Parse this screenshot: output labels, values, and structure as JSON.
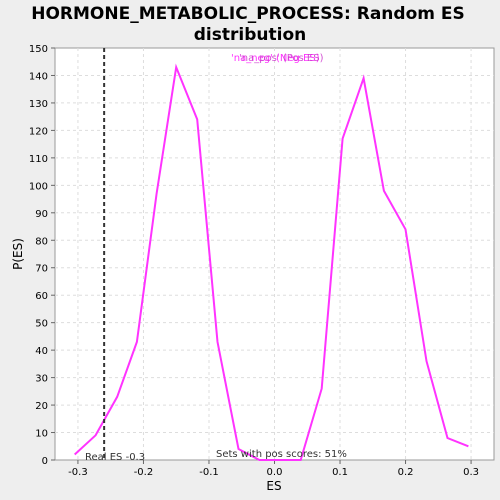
{
  "chart_data": {
    "type": "line",
    "title_line1": "HORMONE_METABOLIC_PROCESS: Random ES",
    "title_line2": "distribution",
    "xlabel": "ES",
    "ylabel": "P(ES)",
    "xlim": [
      -0.335,
      0.335
    ],
    "ylim": [
      0,
      150
    ],
    "xticks": [
      -0.3,
      -0.2,
      -0.1,
      0.0,
      0.1,
      0.2,
      0.3
    ],
    "xtick_labels": [
      "-0.3",
      "-0.2",
      "-0.1",
      "0.0",
      "0.1",
      "0.2",
      "0.3"
    ],
    "yticks": [
      0,
      10,
      20,
      30,
      40,
      50,
      60,
      70,
      80,
      90,
      100,
      110,
      120,
      130,
      140,
      150
    ],
    "grid": true,
    "series": [
      {
        "name": "'na_neg' (Neg ES)",
        "name_positive": "'na_pos' (Pos ES)",
        "color": "#ff33ff",
        "x": [
          -0.305,
          -0.273,
          -0.24,
          -0.21,
          -0.18,
          -0.15,
          -0.118,
          -0.087,
          -0.055,
          -0.023,
          0.008,
          0.04,
          0.072,
          0.104,
          0.136,
          0.167,
          0.2,
          0.232,
          0.264,
          0.296
        ],
        "y": [
          2,
          9,
          23,
          43,
          97,
          143,
          124,
          43,
          4,
          0,
          0,
          0,
          26,
          117,
          139,
          98,
          84,
          36,
          8,
          5
        ]
      }
    ],
    "real_es": -0.26,
    "real_es_label": "Real ES -0.3",
    "pos_scores_label": "Sets with pos scores: 51%",
    "legend_placement": "top-center"
  }
}
